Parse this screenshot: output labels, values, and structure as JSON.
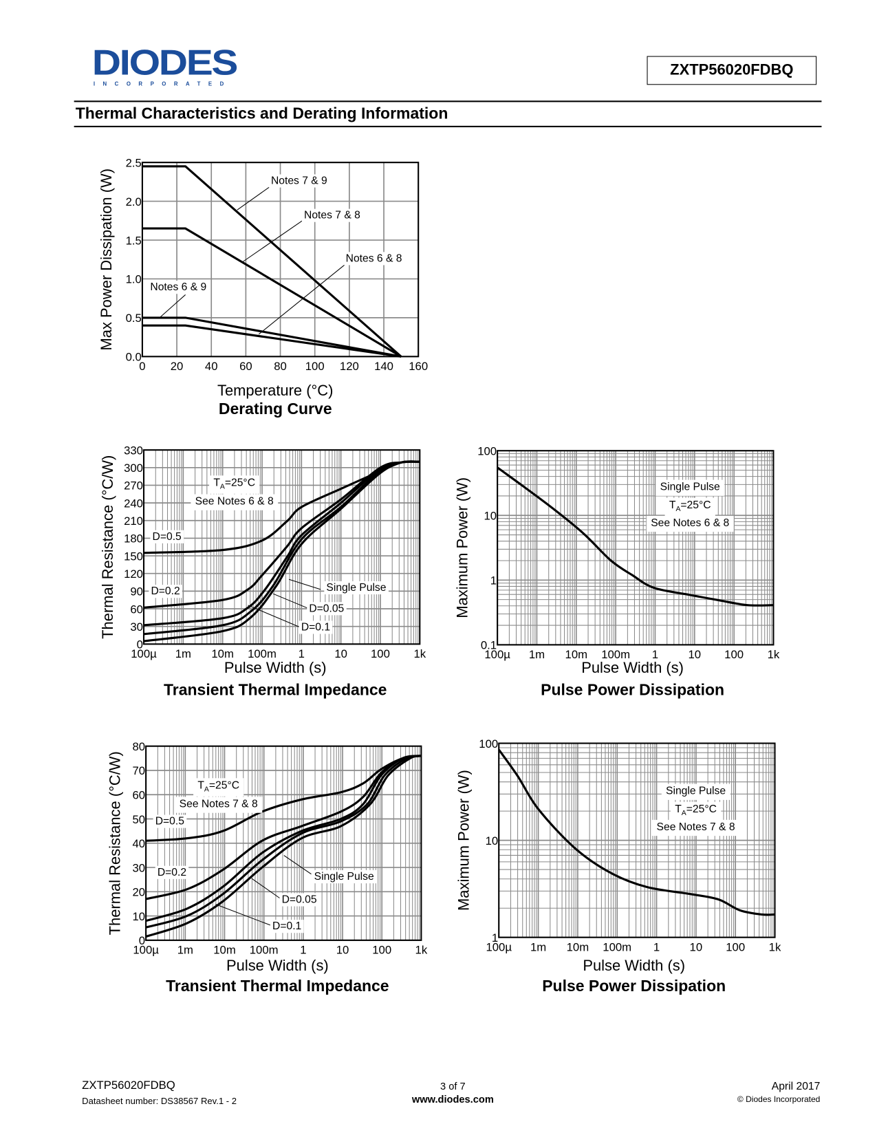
{
  "header": {
    "logo_text": "DIODES",
    "logo_subtext": "INCORPORATED",
    "part_number": "ZXTP56020FDBQ",
    "section_title": "Thermal Characteristics and Derating Information",
    "brand_color": "#1b4d9b"
  },
  "footer": {
    "part_number": "ZXTP56020FDBQ",
    "datasheet_number": "Datasheet number: DS38567  Rev.1 - 2",
    "page": "3 of 7",
    "website": "www.diodes.com",
    "date": "April 2017",
    "copyright": "© Diodes Incorporated"
  },
  "chart_data": [
    {
      "type": "line",
      "title": "Derating Curve",
      "xlabel": "Temperature (°C)",
      "ylabel": "Max Power Dissipation (W)",
      "xscale": "linear",
      "yscale": "linear",
      "xlim": [
        0,
        160
      ],
      "ylim": [
        0,
        2.5
      ],
      "xticks": [
        0,
        20,
        40,
        60,
        80,
        100,
        120,
        140,
        160
      ],
      "xtick_labels": [
        "0",
        "20",
        "40",
        "60",
        "80",
        "100",
        "120",
        "140",
        "160"
      ],
      "yticks": [
        0,
        0.5,
        1.0,
        1.5,
        2.0,
        2.5
      ],
      "ytick_labels": [
        "0.0",
        "0.5",
        "1.0",
        "1.5",
        "2.0",
        "2.5"
      ],
      "grid": true,
      "series": [
        {
          "name": "Notes 7 & 9",
          "x": [
            0,
            25,
            150
          ],
          "y": [
            2.45,
            2.45,
            0
          ]
        },
        {
          "name": "Notes 7 & 8",
          "x": [
            0,
            25,
            150
          ],
          "y": [
            1.65,
            1.65,
            0
          ]
        },
        {
          "name": "Notes 6 & 9",
          "x": [
            0,
            25,
            150
          ],
          "y": [
            0.5,
            0.5,
            0
          ]
        },
        {
          "name": "Notes 6 & 8",
          "x": [
            0,
            25,
            150
          ],
          "y": [
            0.4,
            0.4,
            0
          ]
        }
      ],
      "annotations": [
        "Notes 7 & 9",
        "Notes 7 & 8",
        "Notes 6 & 8",
        "Notes 6 & 9"
      ]
    },
    {
      "type": "line",
      "title": "Transient Thermal Impedance",
      "xlabel": "Pulse Width (s)",
      "ylabel": "Thermal Resistance (°C/W)",
      "xscale": "log",
      "yscale": "linear",
      "xlim": [
        0.0001,
        1000
      ],
      "ylim": [
        0,
        330
      ],
      "xticks": [
        0.0001,
        0.001,
        0.01,
        0.1,
        1,
        10,
        100,
        1000
      ],
      "xtick_labels": [
        "100µ",
        "1m",
        "10m",
        "100m",
        "1",
        "10",
        "100",
        "1k"
      ],
      "yticks": [
        0,
        30,
        60,
        90,
        120,
        150,
        180,
        210,
        240,
        270,
        300,
        330
      ],
      "ytick_labels": [
        "0",
        "30",
        "60",
        "90",
        "120",
        "150",
        "180",
        "210",
        "240",
        "270",
        "300",
        "330"
      ],
      "grid": true,
      "series": [
        {
          "name": "D=0.5",
          "x": [
            0.0001,
            0.01,
            0.1,
            0.43,
            1,
            10,
            100,
            350,
            1000
          ],
          "y": [
            155,
            160,
            176,
            209,
            233,
            264,
            294,
            309,
            310
          ]
        },
        {
          "name": "D=0.2",
          "x": [
            0.0001,
            0.01,
            0.044,
            0.1,
            0.43,
            1,
            10,
            100,
            350,
            1000
          ],
          "y": [
            62,
            75,
            93,
            117,
            166,
            197,
            246,
            300,
            309,
            310
          ]
        },
        {
          "name": "D=0.1",
          "x": [
            0.0001,
            0.01,
            0.044,
            0.12,
            0.43,
            1,
            10,
            100,
            350,
            1000
          ],
          "y": [
            32,
            44,
            62,
            93,
            148,
            185,
            240,
            298,
            309,
            310
          ]
        },
        {
          "name": "D=0.05",
          "x": [
            0.0001,
            0.01,
            0.053,
            0.19,
            1,
            10,
            100,
            350,
            1000
          ],
          "y": [
            17,
            32,
            56,
            99,
            178,
            233,
            295,
            309,
            310
          ]
        },
        {
          "name": "Single Pulse",
          "x": [
            0.0001,
            0.01,
            0.053,
            0.23,
            1,
            10,
            100,
            350,
            1000
          ],
          "y": [
            5,
            22,
            46,
            99,
            170,
            230,
            291,
            309,
            310
          ]
        }
      ],
      "annotations": [
        "D=0.5",
        "D=0.2",
        "Single Pulse",
        "D=0.05",
        "D=0.1"
      ],
      "condition": {
        "t": "T",
        "sub": "A",
        "value": "=25°C",
        "notes": "See Notes 6 & 8"
      }
    },
    {
      "type": "line",
      "title": "Pulse Power Dissipation",
      "xlabel": "Pulse Width (s)",
      "ylabel": "Maximum Power (W)",
      "xscale": "log",
      "yscale": "log",
      "xlim": [
        0.0001,
        1000
      ],
      "ylim": [
        0.1,
        100
      ],
      "xticks": [
        0.0001,
        0.001,
        0.01,
        0.1,
        1,
        10,
        100,
        1000
      ],
      "xtick_labels": [
        "100µ",
        "1m",
        "10m",
        "100m",
        "1",
        "10",
        "100",
        "1k"
      ],
      "yticks": [
        0.1,
        1,
        10,
        100
      ],
      "ytick_labels": [
        "0.1",
        "1",
        "10",
        "100"
      ],
      "grid": true,
      "series": [
        {
          "name": "Single Pulse",
          "x": [
            0.0001,
            0.0017,
            0.014,
            0.076,
            0.26,
            0.93,
            7.6,
            40,
            218,
            1000
          ],
          "y": [
            55,
            15.5,
            5.5,
            2.0,
            1.2,
            0.76,
            0.59,
            0.49,
            0.41,
            0.41
          ]
        }
      ],
      "condition": {
        "line1": "Single Pulse",
        "t": "T",
        "sub": "A",
        "value": "=25°C",
        "notes": "See Notes 6 & 8"
      }
    },
    {
      "type": "line",
      "title": "Transient Thermal Impedance",
      "xlabel": "Pulse Width (s)",
      "ylabel": "Thermal Resistance (°C/W)",
      "xscale": "log",
      "yscale": "linear",
      "xlim": [
        0.0001,
        1000
      ],
      "ylim": [
        0,
        80
      ],
      "xticks": [
        0.0001,
        0.001,
        0.01,
        0.1,
        1,
        10,
        100,
        1000
      ],
      "xtick_labels": [
        "100µ",
        "1m",
        "10m",
        "100m",
        "1",
        "10",
        "100",
        "1k"
      ],
      "yticks": [
        0,
        10,
        20,
        30,
        40,
        50,
        60,
        70,
        80
      ],
      "ytick_labels": [
        "0",
        "10",
        "20",
        "30",
        "40",
        "50",
        "60",
        "70",
        "80"
      ],
      "grid": true,
      "series": [
        {
          "name": "D=0.5",
          "x": [
            0.0001,
            0.0011,
            0.009,
            0.09,
            0.9,
            9,
            33,
            96,
            340,
            1000
          ],
          "y": [
            41,
            42,
            45,
            53,
            58,
            61,
            64.6,
            70.5,
            75,
            76
          ]
        },
        {
          "name": "D=0.2",
          "x": [
            0.0001,
            0.0011,
            0.009,
            0.09,
            0.9,
            9,
            33,
            96,
            340,
            1000
          ],
          "y": [
            17,
            21,
            29,
            41,
            47,
            53,
            59,
            69,
            75,
            76
          ]
        },
        {
          "name": "D=0.1",
          "x": [
            0.0001,
            0.0011,
            0.009,
            0.09,
            0.9,
            9,
            33,
            96,
            340,
            1000
          ],
          "y": [
            8,
            13,
            22,
            36,
            45,
            50,
            56,
            68,
            75,
            76
          ]
        },
        {
          "name": "D=0.05",
          "x": [
            0.0001,
            0.0011,
            0.009,
            0.09,
            0.9,
            9,
            42,
            118,
            420,
            1000
          ],
          "y": [
            5.3,
            10,
            19,
            33,
            44,
            49,
            56,
            68,
            75,
            76
          ]
        },
        {
          "name": "Single Pulse",
          "x": [
            0.0001,
            0.0011,
            0.009,
            0.09,
            0.9,
            9,
            50,
            145,
            520,
            1000
          ],
          "y": [
            1.5,
            7,
            16,
            30,
            42,
            47,
            56,
            68,
            75,
            76
          ]
        }
      ],
      "annotations": [
        "D=0.5",
        "D=0.2",
        "Single Pulse",
        "D=0.05",
        "D=0.1"
      ],
      "condition": {
        "t": "T",
        "sub": "A",
        "value": "=25°C",
        "notes": "See Notes 7 & 8"
      }
    },
    {
      "type": "line",
      "title": "Pulse Power Dissipation",
      "xlabel": "Pulse Width (s)",
      "ylabel": "Maximum Power (W)",
      "xscale": "log",
      "yscale": "log",
      "xlim": [
        0.0001,
        1000
      ],
      "ylim": [
        1,
        100
      ],
      "xticks": [
        0.0001,
        0.001,
        0.01,
        0.1,
        1,
        10,
        100,
        1000
      ],
      "xtick_labels": [
        "100µ",
        "1m",
        "10m",
        "100m",
        "1",
        "10",
        "100",
        "1k"
      ],
      "yticks": [
        1,
        10,
        100
      ],
      "ytick_labels": [
        "1",
        "10",
        "100"
      ],
      "grid": true,
      "series": [
        {
          "name": "Single Pulse",
          "x": [
            0.0001,
            0.0003,
            0.001,
            0.0085,
            0.07,
            0.57,
            7,
            37,
            130,
            470,
            1000
          ],
          "y": [
            86,
            46,
            21,
            8.3,
            4.6,
            3.3,
            2.8,
            2.46,
            1.9,
            1.72,
            1.72
          ]
        }
      ],
      "condition": {
        "line1": "Single Pulse",
        "t": "T",
        "sub": "A",
        "value": "=25°C",
        "notes": "See Notes 7 & 8"
      }
    }
  ]
}
